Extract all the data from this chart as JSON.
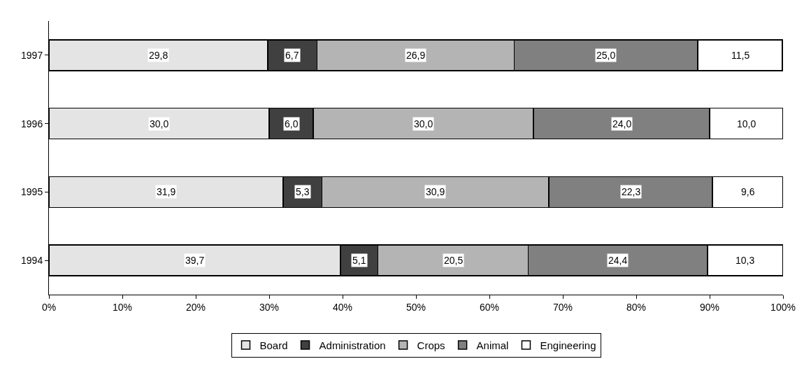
{
  "chart_data": {
    "type": "bar",
    "orientation": "horizontal",
    "stacked": true,
    "categories": [
      "1997",
      "1996",
      "1995",
      "1994"
    ],
    "series": [
      {
        "name": "Board",
        "color": "#e4e4e4",
        "values": [
          29.8,
          30.0,
          31.9,
          39.7
        ],
        "value_labels": [
          "29,8",
          "30,0",
          "31,9",
          "39,7"
        ]
      },
      {
        "name": "Administration",
        "color": "#404040",
        "values": [
          6.7,
          6.0,
          5.3,
          5.1
        ],
        "value_labels": [
          "6,7",
          "6,0",
          "5,3",
          "5,1"
        ]
      },
      {
        "name": "Crops",
        "color": "#b4b4b4",
        "values": [
          26.9,
          30.0,
          30.9,
          20.5
        ],
        "value_labels": [
          "26,9",
          "30,0",
          "30,9",
          "20,5"
        ]
      },
      {
        "name": "Animal",
        "color": "#808080",
        "values": [
          25.0,
          24.0,
          22.3,
          24.4
        ],
        "value_labels": [
          "25,0",
          "24,0",
          "22,3",
          "24,4"
        ]
      },
      {
        "name": "Engineering",
        "color": "#ffffff",
        "values": [
          11.5,
          10.0,
          9.6,
          10.3
        ],
        "value_labels": [
          "11,5",
          "10,0",
          "9,6",
          "10,3"
        ]
      }
    ],
    "xlim": [
      0,
      100
    ],
    "xticks": [
      {
        "value": 0,
        "label": "0%"
      },
      {
        "value": 10,
        "label": "10%"
      },
      {
        "value": 20,
        "label": "20%"
      },
      {
        "value": 30,
        "label": "30%"
      },
      {
        "value": 40,
        "label": "40%"
      },
      {
        "value": 50,
        "label": "50%"
      },
      {
        "value": 60,
        "label": "60%"
      },
      {
        "value": 70,
        "label": "70%"
      },
      {
        "value": 80,
        "label": "80%"
      },
      {
        "value": 90,
        "label": "90%"
      },
      {
        "value": 100,
        "label": "100%"
      }
    ],
    "legend": "bottom"
  }
}
